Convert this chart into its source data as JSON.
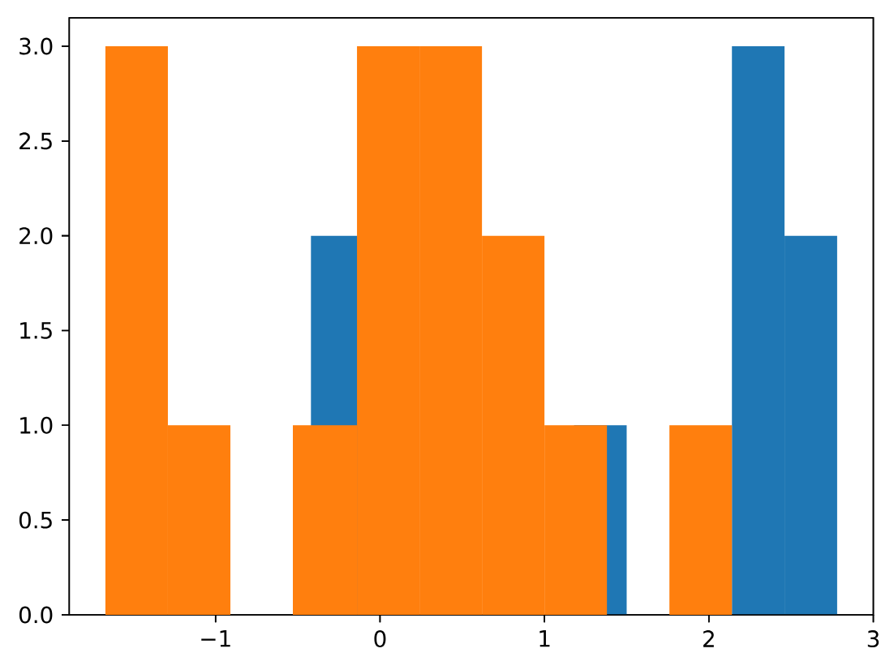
{
  "chart_data": [
    {
      "type": "histogram",
      "color": "#1f77b4",
      "bins": [
        -0.42,
        -0.1,
        0.22,
        0.54,
        0.86,
        1.18,
        1.5,
        1.82,
        2.14,
        2.46,
        2.78
      ],
      "values": [
        2,
        null,
        null,
        null,
        null,
        1,
        0,
        null,
        3,
        2
      ],
      "xlim": [
        -1.89,
        3.0
      ],
      "ylim": [
        0,
        3.15
      ],
      "xticks": [
        {
          "value": -1,
          "label": "−1"
        },
        {
          "value": 0,
          "label": "0"
        },
        {
          "value": 1,
          "label": "1"
        },
        {
          "value": 2,
          "label": "2"
        },
        {
          "value": 3,
          "label": "3"
        }
      ],
      "yticks": [
        {
          "value": 0,
          "label": "0.0"
        },
        {
          "value": 0.5,
          "label": "0.5"
        },
        {
          "value": 1,
          "label": "1.0"
        },
        {
          "value": 1.5,
          "label": "1.5"
        },
        {
          "value": 2,
          "label": "2.0"
        },
        {
          "value": 2.5,
          "label": "2.5"
        },
        {
          "value": 3,
          "label": "3.0"
        }
      ]
    },
    {
      "type": "histogram",
      "color": "#ff7f0e",
      "bins": [
        -1.67,
        -1.29,
        -0.91,
        -0.53,
        -0.14,
        0.24,
        0.62,
        1.0,
        1.38,
        1.76,
        2.14
      ],
      "values": [
        3,
        1,
        0,
        1,
        3,
        3,
        2,
        1,
        0,
        1
      ],
      "xlim": [
        -1.89,
        3.0
      ],
      "ylim": [
        0,
        3.15
      ],
      "xticks": [
        -1,
        0,
        1,
        2,
        3
      ],
      "yticks": [
        0,
        0.5,
        1,
        1.5,
        2,
        2.5,
        3
      ],
      "tick_labels": false
    }
  ]
}
